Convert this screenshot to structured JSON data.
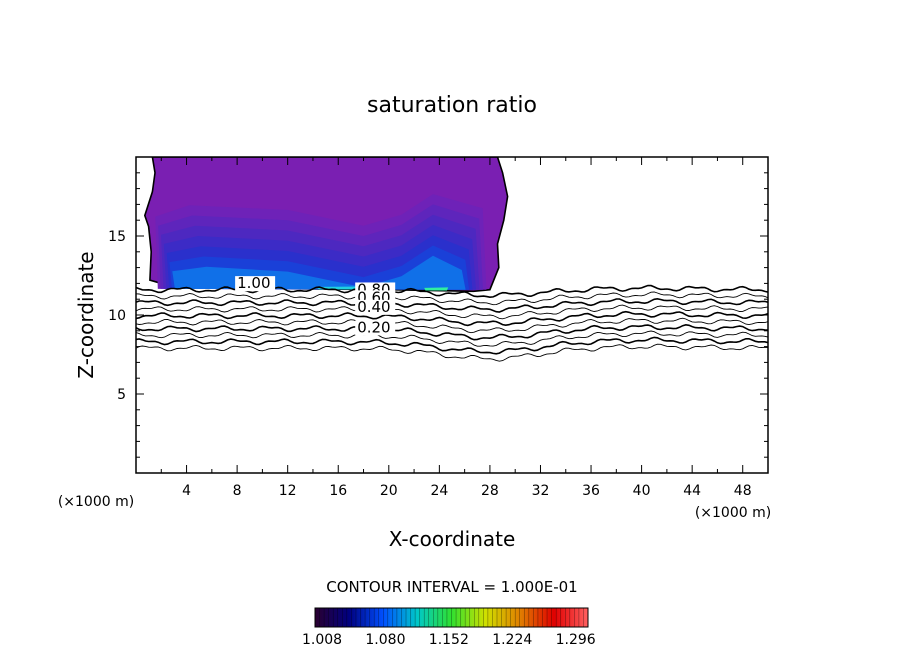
{
  "chart_data": {
    "type": "contour",
    "title": "saturation ratio",
    "xlabel": "X-coordinate",
    "ylabel": "Z-coordinate",
    "x_unit": "(×1000 m)",
    "z_unit": "(×1000 m)",
    "xlim": [
      0,
      50
    ],
    "ylim": [
      0,
      20
    ],
    "x_ticks": [
      4,
      8,
      12,
      16,
      20,
      24,
      28,
      32,
      36,
      40,
      44,
      48
    ],
    "y_ticks": [
      5,
      10,
      15
    ],
    "contour_interval_text": "CONTOUR INTERVAL = 1.000E-01",
    "contour_labels": [
      {
        "text": "1.00",
        "x": 8,
        "z": 11.7
      },
      {
        "text": "0.80",
        "x": 17.5,
        "z": 11.3
      },
      {
        "text": "0.60",
        "x": 17.5,
        "z": 10.8
      },
      {
        "text": "0.40",
        "x": 17.5,
        "z": 10.2
      },
      {
        "text": "0.20",
        "x": 17.5,
        "z": 8.9
      }
    ],
    "contour_levels": [
      0.1,
      0.2,
      0.3,
      0.4,
      0.5,
      0.6,
      0.7,
      0.8,
      0.9,
      1.0
    ],
    "supersaturated_region": {
      "x_range": [
        0.7,
        29.2
      ],
      "z_range": [
        11.5,
        20
      ]
    },
    "colorbar": {
      "tick_labels": [
        "1.008",
        "1.080",
        "1.152",
        "1.224",
        "1.296"
      ],
      "min": 1.0,
      "max": 1.31,
      "colors": [
        "#2a0030",
        "#000080",
        "#0050ff",
        "#00c8c8",
        "#30e030",
        "#d0e000",
        "#e08000",
        "#e00000",
        "#ff6060"
      ]
    },
    "fill_colors": [
      "#7a1fb2",
      "#6e22b8",
      "#5e25bc",
      "#4d28c0",
      "#3c2bc6",
      "#2a30cc",
      "#1a40d8",
      "#1070e8",
      "#20d0e0"
    ]
  }
}
